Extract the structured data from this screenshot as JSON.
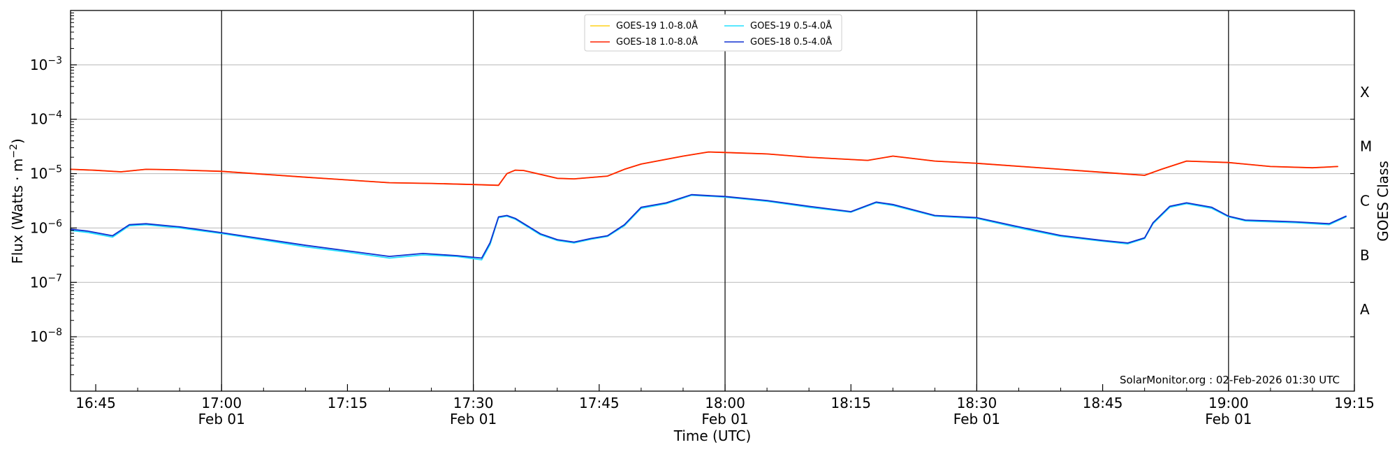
{
  "chart_data": {
    "type": "line",
    "xlabel": "Time (UTC)",
    "ylabel_prefix": "Flux (Watts · m",
    "ylabel_sup": "−2",
    "ylabel_suffix": ")",
    "y_scale": "log",
    "ylim": [
      1e-09,
      0.01
    ],
    "xlim": [
      "2026-02-01 16:42",
      "2026-02-01 19:15"
    ],
    "y_ticks": [
      {
        "value": 1e-08,
        "base": "10",
        "exp": "−8"
      },
      {
        "value": 1e-07,
        "base": "10",
        "exp": "−7"
      },
      {
        "value": 1e-06,
        "base": "10",
        "exp": "−6"
      },
      {
        "value": 1e-05,
        "base": "10",
        "exp": "−5"
      },
      {
        "value": 0.0001,
        "base": "10",
        "exp": "−4"
      },
      {
        "value": 0.001,
        "base": "10",
        "exp": "−3"
      }
    ],
    "x_ticks": [
      {
        "time": "2026-02-01 16:45",
        "label": "16:45",
        "date": ""
      },
      {
        "time": "2026-02-01 17:00",
        "label": "17:00",
        "date": "Feb 01"
      },
      {
        "time": "2026-02-01 17:15",
        "label": "17:15",
        "date": ""
      },
      {
        "time": "2026-02-01 17:30",
        "label": "17:30",
        "date": "Feb 01"
      },
      {
        "time": "2026-02-01 17:45",
        "label": "17:45",
        "date": ""
      },
      {
        "time": "2026-02-01 18:00",
        "label": "18:00",
        "date": "Feb 01"
      },
      {
        "time": "2026-02-01 18:15",
        "label": "18:15",
        "date": ""
      },
      {
        "time": "2026-02-01 18:30",
        "label": "18:30",
        "date": "Feb 01"
      },
      {
        "time": "2026-02-01 18:45",
        "label": "18:45",
        "date": ""
      },
      {
        "time": "2026-02-01 19:00",
        "label": "19:00",
        "date": "Feb 01"
      },
      {
        "time": "2026-02-01 19:15",
        "label": "19:15",
        "date": ""
      }
    ],
    "right_axis": {
      "label": "GOES Class",
      "classes": [
        {
          "label": "A",
          "flux": 1e-08
        },
        {
          "label": "B",
          "flux": 1e-07
        },
        {
          "label": "C",
          "flux": 1e-06
        },
        {
          "label": "M",
          "flux": 1e-05
        },
        {
          "label": "X",
          "flux": 0.0001
        }
      ]
    },
    "grid": true,
    "legend_position": "top-center",
    "annotation": "SolarMonitor.org : 02-Feb-2026 01:30 UTC",
    "series": [
      {
        "name": "GOES-19 1.0-8.0Å",
        "color": "#ffd21a",
        "x": [
          "2026-02-01 16:42",
          "2026-02-01 16:45",
          "2026-02-01 16:48",
          "2026-02-01 16:51",
          "2026-02-01 16:54",
          "2026-02-01 17:00",
          "2026-02-01 17:10",
          "2026-02-01 17:20",
          "2026-02-01 17:25",
          "2026-02-01 17:30",
          "2026-02-01 17:33",
          "2026-02-01 17:34",
          "2026-02-01 17:35",
          "2026-02-01 17:36",
          "2026-02-01 17:40",
          "2026-02-01 17:42",
          "2026-02-01 17:46",
          "2026-02-01 17:48",
          "2026-02-01 17:50",
          "2026-02-01 17:55",
          "2026-02-01 17:58",
          "2026-02-01 18:00",
          "2026-02-01 18:05",
          "2026-02-01 18:10",
          "2026-02-01 18:17",
          "2026-02-01 18:20",
          "2026-02-01 18:25",
          "2026-02-01 18:30",
          "2026-02-01 18:40",
          "2026-02-01 18:48",
          "2026-02-01 18:50",
          "2026-02-01 18:52",
          "2026-02-01 18:55",
          "2026-02-01 19:00",
          "2026-02-01 19:05",
          "2026-02-01 19:10",
          "2026-02-01 19:13"
        ],
        "y": [
          1.2e-05,
          1.15e-05,
          1.08e-05,
          1.2e-05,
          1.18e-05,
          1.1e-05,
          8.6e-06,
          6.8e-06,
          6.6e-06,
          6.3e-06,
          6.1e-06,
          1e-05,
          1.16e-05,
          1.14e-05,
          8.2e-06,
          8e-06,
          9e-06,
          1.2e-05,
          1.5e-05,
          2.1e-05,
          2.5e-05,
          2.45e-05,
          2.3e-05,
          2e-05,
          1.75e-05,
          2.1e-05,
          1.7e-05,
          1.55e-05,
          1.2e-05,
          9.8e-06,
          9.3e-06,
          1.2e-05,
          1.7e-05,
          1.6e-05,
          1.35e-05,
          1.28e-05,
          1.35e-05
        ]
      },
      {
        "name": "GOES-18 1.0-8.0Å",
        "color": "#ff2200",
        "x": [
          "2026-02-01 16:42",
          "2026-02-01 16:45",
          "2026-02-01 16:48",
          "2026-02-01 16:51",
          "2026-02-01 16:54",
          "2026-02-01 17:00",
          "2026-02-01 17:10",
          "2026-02-01 17:20",
          "2026-02-01 17:25",
          "2026-02-01 17:30",
          "2026-02-01 17:33",
          "2026-02-01 17:34",
          "2026-02-01 17:35",
          "2026-02-01 17:36",
          "2026-02-01 17:40",
          "2026-02-01 17:42",
          "2026-02-01 17:46",
          "2026-02-01 17:48",
          "2026-02-01 17:50",
          "2026-02-01 17:55",
          "2026-02-01 17:58",
          "2026-02-01 18:00",
          "2026-02-01 18:05",
          "2026-02-01 18:10",
          "2026-02-01 18:17",
          "2026-02-01 18:20",
          "2026-02-01 18:25",
          "2026-02-01 18:30",
          "2026-02-01 18:40",
          "2026-02-01 18:48",
          "2026-02-01 18:50",
          "2026-02-01 18:52",
          "2026-02-01 18:55",
          "2026-02-01 19:00",
          "2026-02-01 19:05",
          "2026-02-01 19:10",
          "2026-02-01 19:13"
        ],
        "y": [
          1.2e-05,
          1.15e-05,
          1.08e-05,
          1.2e-05,
          1.18e-05,
          1.1e-05,
          8.6e-06,
          6.8e-06,
          6.6e-06,
          6.3e-06,
          6.1e-06,
          1e-05,
          1.16e-05,
          1.14e-05,
          8.2e-06,
          8e-06,
          9e-06,
          1.2e-05,
          1.5e-05,
          2.1e-05,
          2.5e-05,
          2.45e-05,
          2.3e-05,
          2e-05,
          1.75e-05,
          2.1e-05,
          1.7e-05,
          1.55e-05,
          1.2e-05,
          9.8e-06,
          9.3e-06,
          1.2e-05,
          1.7e-05,
          1.6e-05,
          1.35e-05,
          1.28e-05,
          1.35e-05
        ]
      },
      {
        "name": "GOES-19 0.5-4.0Å",
        "color": "#22e0ff",
        "x": [
          "2026-02-01 16:42",
          "2026-02-01 16:44",
          "2026-02-01 16:47",
          "2026-02-01 16:49",
          "2026-02-01 16:51",
          "2026-02-01 16:55",
          "2026-02-01 17:00",
          "2026-02-01 17:05",
          "2026-02-01 17:10",
          "2026-02-01 17:15",
          "2026-02-01 17:20",
          "2026-02-01 17:24",
          "2026-02-01 17:28",
          "2026-02-01 17:31",
          "2026-02-01 17:32",
          "2026-02-01 17:33",
          "2026-02-01 17:34",
          "2026-02-01 17:35",
          "2026-02-01 17:38",
          "2026-02-01 17:40",
          "2026-02-01 17:42",
          "2026-02-01 17:44",
          "2026-02-01 17:46",
          "2026-02-01 17:48",
          "2026-02-01 17:50",
          "2026-02-01 17:53",
          "2026-02-01 17:56",
          "2026-02-01 18:00",
          "2026-02-01 18:05",
          "2026-02-01 18:10",
          "2026-02-01 18:15",
          "2026-02-01 18:18",
          "2026-02-01 18:20",
          "2026-02-01 18:25",
          "2026-02-01 18:30",
          "2026-02-01 18:35",
          "2026-02-01 18:40",
          "2026-02-01 18:45",
          "2026-02-01 18:48",
          "2026-02-01 18:50",
          "2026-02-01 18:51",
          "2026-02-01 18:53",
          "2026-02-01 18:55",
          "2026-02-01 18:58",
          "2026-02-01 19:00",
          "2026-02-01 19:02",
          "2026-02-01 19:05",
          "2026-02-01 19:08",
          "2026-02-01 19:12",
          "2026-02-01 19:14"
        ],
        "y": [
          9e-07,
          8.3e-07,
          6.8e-07,
          1.1e-06,
          1.15e-06,
          1e-06,
          7.9e-07,
          6e-07,
          4.5e-07,
          3.6e-07,
          2.8e-07,
          3.2e-07,
          3e-07,
          2.6e-07,
          5e-07,
          1.55e-06,
          1.65e-06,
          1.45e-06,
          7.5e-07,
          5.9e-07,
          5.3e-07,
          6.2e-07,
          7e-07,
          1.1e-06,
          2.3e-06,
          2.8e-06,
          4e-06,
          3.7e-06,
          3.1e-06,
          2.4e-06,
          1.95e-06,
          2.9e-06,
          2.6e-06,
          1.65e-06,
          1.5e-06,
          1e-06,
          7e-07,
          5.7e-07,
          5.1e-07,
          6.4e-07,
          1.2e-06,
          2.4e-06,
          2.8e-06,
          2.3e-06,
          1.6e-06,
          1.35e-06,
          1.3e-06,
          1.25e-06,
          1.15e-06,
          1.6e-06
        ]
      },
      {
        "name": "GOES-18 0.5-4.0Å",
        "color": "#1030d0",
        "x": [
          "2026-02-01 16:42",
          "2026-02-01 16:44",
          "2026-02-01 16:47",
          "2026-02-01 16:49",
          "2026-02-01 16:51",
          "2026-02-01 16:55",
          "2026-02-01 17:00",
          "2026-02-01 17:05",
          "2026-02-01 17:10",
          "2026-02-01 17:15",
          "2026-02-01 17:20",
          "2026-02-01 17:24",
          "2026-02-01 17:28",
          "2026-02-01 17:31",
          "2026-02-01 17:32",
          "2026-02-01 17:33",
          "2026-02-01 17:34",
          "2026-02-01 17:35",
          "2026-02-01 17:38",
          "2026-02-01 17:40",
          "2026-02-01 17:42",
          "2026-02-01 17:44",
          "2026-02-01 17:46",
          "2026-02-01 17:48",
          "2026-02-01 17:50",
          "2026-02-01 17:53",
          "2026-02-01 17:56",
          "2026-02-01 18:00",
          "2026-02-01 18:05",
          "2026-02-01 18:10",
          "2026-02-01 18:15",
          "2026-02-01 18:18",
          "2026-02-01 18:20",
          "2026-02-01 18:25",
          "2026-02-01 18:30",
          "2026-02-01 18:35",
          "2026-02-01 18:40",
          "2026-02-01 18:45",
          "2026-02-01 18:48",
          "2026-02-01 18:50",
          "2026-02-01 18:51",
          "2026-02-01 18:53",
          "2026-02-01 18:55",
          "2026-02-01 18:58",
          "2026-02-01 19:00",
          "2026-02-01 19:02",
          "2026-02-01 19:05",
          "2026-02-01 19:08",
          "2026-02-01 19:12",
          "2026-02-01 19:14"
        ],
        "y": [
          9.5e-07,
          8.8e-07,
          7.2e-07,
          1.15e-06,
          1.2e-06,
          1.05e-06,
          8.2e-07,
          6.3e-07,
          4.8e-07,
          3.8e-07,
          3e-07,
          3.4e-07,
          3.1e-07,
          2.8e-07,
          5.4e-07,
          1.6e-06,
          1.7e-06,
          1.5e-06,
          7.8e-07,
          6.1e-07,
          5.5e-07,
          6.4e-07,
          7.2e-07,
          1.15e-06,
          2.4e-06,
          2.9e-06,
          4.1e-06,
          3.8e-06,
          3.2e-06,
          2.5e-06,
          2e-06,
          3e-06,
          2.7e-06,
          1.7e-06,
          1.55e-06,
          1.05e-06,
          7.3e-07,
          5.9e-07,
          5.3e-07,
          6.6e-07,
          1.25e-06,
          2.5e-06,
          2.9e-06,
          2.4e-06,
          1.65e-06,
          1.4e-06,
          1.35e-06,
          1.3e-06,
          1.2e-06,
          1.65e-06
        ]
      }
    ]
  }
}
